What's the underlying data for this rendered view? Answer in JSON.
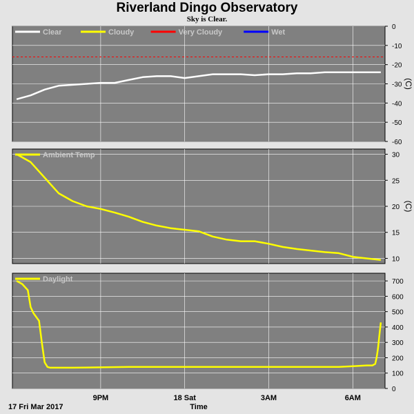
{
  "title": "Riverland Dingo Observatory",
  "subtitle": "Sky is Clear.",
  "x_axis": {
    "label": "Time",
    "start_label": "17 Fri Mar 2017",
    "ticks": [
      {
        "hour": 21,
        "label": "9PM"
      },
      {
        "hour": 24,
        "label": "18 Sat"
      },
      {
        "hour": 27,
        "label": "3AM"
      },
      {
        "hour": 30,
        "label": "6AM"
      }
    ]
  },
  "colors": {
    "panel_bg": "#808080",
    "grid": "#ffffff",
    "page_bg": "#e4e4e4",
    "clear": "#ffffff",
    "cloudy": "#ffff00",
    "very_cloudy": "#ff0000",
    "wet": "#0000ff"
  },
  "chart_data": [
    {
      "type": "line",
      "panel": "sky",
      "ylim": [
        -60,
        0
      ],
      "ylabel_unit": "(C)",
      "ytick_labels": [
        "0",
        "-10",
        "-20",
        "-30",
        "-40",
        "-50",
        "-60"
      ],
      "ytick_values": [
        0,
        -10,
        -20,
        -30,
        -40,
        -50,
        -60
      ],
      "grid": true,
      "legend": [
        {
          "name": "Clear",
          "color": "#ffffff"
        },
        {
          "name": "Cloudy",
          "color": "#ffff00"
        },
        {
          "name": "Very Cloudy",
          "color": "#ff0000"
        },
        {
          "name": "Wet",
          "color": "#0000ff"
        }
      ],
      "threshold": {
        "name": "Very Cloudy",
        "value": -16,
        "color": "#ff0000"
      },
      "series": [
        {
          "name": "Clear",
          "color": "#ffffff",
          "x": [
            18.0,
            18.5,
            19.0,
            19.5,
            20.0,
            20.5,
            21.0,
            21.5,
            22.0,
            22.5,
            23.0,
            23.5,
            24.0,
            24.5,
            25.0,
            25.5,
            26.0,
            26.5,
            27.0,
            27.5,
            28.0,
            28.5,
            29.0,
            29.5,
            30.0,
            30.5,
            31.0
          ],
          "y": [
            -38,
            -36,
            -33,
            -31,
            -30.5,
            -30,
            -29.5,
            -29.5,
            -28,
            -26.5,
            -26,
            -26,
            -27,
            -26,
            -25,
            -25,
            -25,
            -25.5,
            -25,
            -25,
            -24.5,
            -24.5,
            -24,
            -24,
            -24,
            -24,
            -24
          ]
        }
      ]
    },
    {
      "type": "line",
      "panel": "ambient",
      "ylim": [
        9,
        31
      ],
      "ylabel_unit": "(C)",
      "ytick_labels": [
        "30",
        "25",
        "20",
        "15",
        "10"
      ],
      "ytick_values": [
        30,
        25,
        20,
        15,
        10
      ],
      "grid": true,
      "legend": [
        {
          "name": "Ambient Temp",
          "color": "#ffff00"
        }
      ],
      "series": [
        {
          "name": "Ambient Temp",
          "color": "#ffff00",
          "x": [
            18.0,
            18.5,
            19.0,
            19.5,
            20.0,
            20.5,
            21.0,
            21.5,
            22.0,
            22.5,
            23.0,
            23.5,
            24.0,
            24.5,
            25.0,
            25.5,
            26.0,
            26.5,
            27.0,
            27.5,
            28.0,
            28.5,
            29.0,
            29.5,
            30.0,
            30.5,
            31.0
          ],
          "y": [
            30,
            28.5,
            25.5,
            22.5,
            21,
            20,
            19.5,
            18.8,
            18,
            17,
            16.3,
            15.8,
            15.5,
            15.2,
            14.2,
            13.6,
            13.3,
            13.3,
            12.8,
            12.2,
            11.8,
            11.5,
            11.2,
            11,
            10.3,
            10,
            9.7
          ]
        }
      ]
    },
    {
      "type": "line",
      "panel": "daylight",
      "ylim": [
        0,
        750
      ],
      "ytick_labels": [
        "700",
        "600",
        "500",
        "400",
        "300",
        "200",
        "100",
        "0"
      ],
      "ytick_values": [
        700,
        600,
        500,
        400,
        300,
        200,
        100,
        0
      ],
      "grid": true,
      "legend": [
        {
          "name": "Daylight",
          "color": "#ffff00"
        }
      ],
      "series": [
        {
          "name": "Daylight",
          "color": "#ffff00",
          "x": [
            18.0,
            18.2,
            18.4,
            18.5,
            18.6,
            18.8,
            18.9,
            19.0,
            19.1,
            19.2,
            19.5,
            20.0,
            22.0,
            24.0,
            26.0,
            28.0,
            29.5,
            30.0,
            30.5,
            30.7,
            30.8,
            30.85,
            30.9,
            30.95,
            31.0
          ],
          "y": [
            700,
            680,
            640,
            530,
            490,
            440,
            300,
            170,
            140,
            135,
            135,
            135,
            140,
            140,
            140,
            140,
            140,
            145,
            150,
            150,
            160,
            200,
            260,
            350,
            430
          ]
        }
      ]
    }
  ]
}
